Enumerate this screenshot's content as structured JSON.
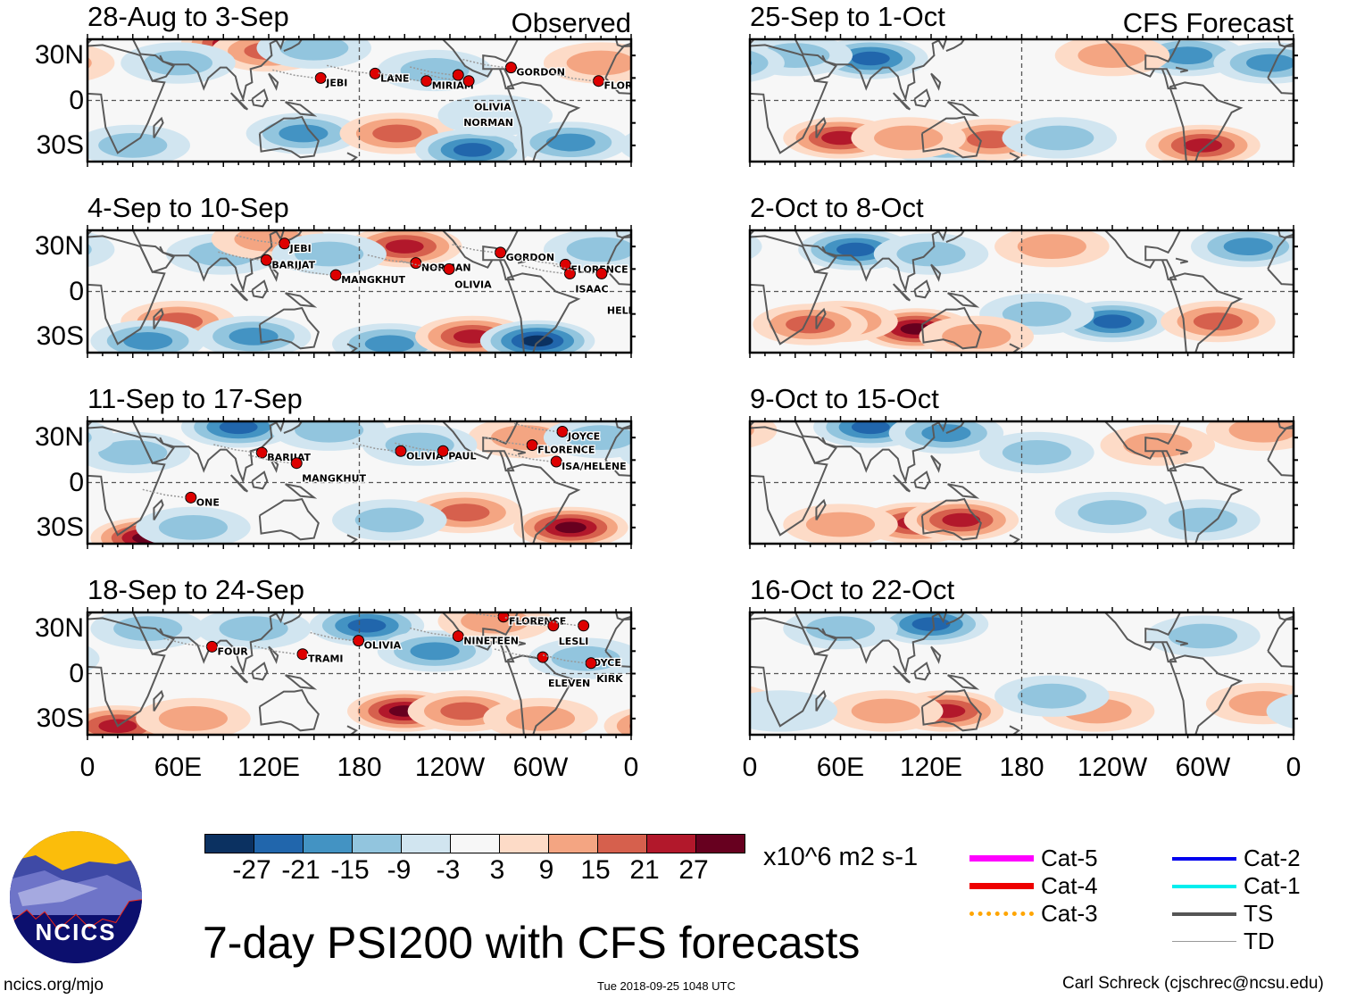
{
  "figure": {
    "title": "7-day PSI200 with CFS forecasts",
    "units": "x10^6 m2 s-1",
    "website": "ncics.org/mjo",
    "timestamp": "Tue 2018-09-25 1048 UTC",
    "author": "Carl Schreck (cjschrec@ncsu.edu)",
    "logo_text": "NCICS",
    "observed_label": "Observed",
    "forecast_label": "CFS Forecast"
  },
  "axes": {
    "lat_labels": [
      "30N",
      "0",
      "30S"
    ],
    "lon_labels": [
      "0",
      "60E",
      "120E",
      "180",
      "120W",
      "60W",
      "0"
    ],
    "lon_range": [
      0,
      360
    ],
    "lat_range": [
      -40,
      40
    ]
  },
  "colorbar": {
    "levels": [
      -27,
      -21,
      -15,
      -9,
      -3,
      3,
      9,
      15,
      21,
      27
    ],
    "labels": [
      "-27",
      "-21",
      "-15",
      "-9",
      "-3",
      "3",
      "9",
      "15",
      "21",
      "27"
    ],
    "colors": [
      "#0b3161",
      "#2166ac",
      "#4393c3",
      "#92c5de",
      "#d1e5f0",
      "#f7f7f7",
      "#fddbc7",
      "#f4a582",
      "#d6604d",
      "#b2182b",
      "#67001f"
    ]
  },
  "legend": [
    {
      "label": "Cat-5",
      "color": "#ff00ff",
      "style": "thick"
    },
    {
      "label": "Cat-4",
      "color": "#ee0000",
      "style": "thick"
    },
    {
      "label": "Cat-3",
      "color": "#ffa500",
      "style": "dotted"
    },
    {
      "label": "Cat-2",
      "color": "#0000ee",
      "style": "medium"
    },
    {
      "label": "Cat-1",
      "color": "#00eeee",
      "style": "medium"
    },
    {
      "label": "TS",
      "color": "#555555",
      "style": "medium"
    },
    {
      "label": "TD",
      "color": "#999999",
      "style": "thin"
    }
  ],
  "panels": [
    {
      "title": "28-Aug to 3-Sep",
      "type": "observed",
      "anomalies": [
        [
          100,
          38,
          28
        ],
        [
          120,
          33,
          12
        ],
        [
          60,
          25,
          -6
        ],
        [
          143,
          -22,
          -16
        ],
        [
          205,
          -22,
          14
        ],
        [
          255,
          -33,
          -20
        ],
        [
          320,
          -28,
          -14
        ],
        [
          230,
          20,
          -6
        ],
        [
          150,
          35,
          -6
        ],
        [
          30,
          -30,
          -8
        ],
        [
          340,
          25,
          8
        ],
        [
          270,
          -10,
          -5
        ]
      ],
      "storms": [
        {
          "name": "JEBI",
          "lon": 158,
          "lat": 12
        },
        {
          "name": "LANE",
          "lon": 194,
          "lat": 15
        },
        {
          "name": "MIRIAM",
          "lon": 228,
          "lat": 10
        },
        {
          "name": "OLIVIA",
          "lon": 256,
          "lat": 10
        },
        {
          "name": "NORMAN",
          "lon": 249,
          "lat": 14
        },
        {
          "name": "GORDON",
          "lon": 284,
          "lat": 19
        },
        {
          "name": "FLORENCE",
          "lon": 342,
          "lat": 10
        }
      ]
    },
    {
      "title": "25-Sep to 1-Oct",
      "type": "forecast",
      "anomalies": [
        [
          80,
          28,
          -20
        ],
        [
          30,
          30,
          -10
        ],
        [
          60,
          -25,
          22
        ],
        [
          130,
          -30,
          -8
        ],
        [
          160,
          -26,
          12
        ],
        [
          205,
          -25,
          -8
        ],
        [
          300,
          -30,
          22
        ],
        [
          290,
          30,
          -15
        ],
        [
          345,
          25,
          -12
        ],
        [
          240,
          30,
          8
        ],
        [
          105,
          -25,
          10
        ]
      ],
      "storms": []
    },
    {
      "title": "4-Sep to 10-Sep",
      "type": "observed",
      "anomalies": [
        [
          210,
          30,
          20
        ],
        [
          60,
          -20,
          14
        ],
        [
          40,
          -33,
          -16
        ],
        [
          110,
          -30,
          -12
        ],
        [
          200,
          -35,
          -14
        ],
        [
          255,
          -30,
          18
        ],
        [
          298,
          -33,
          -28
        ],
        [
          90,
          25,
          -8
        ],
        [
          120,
          35,
          10
        ],
        [
          340,
          28,
          -10
        ],
        [
          160,
          25,
          -6
        ]
      ],
      "storms": [
        {
          "name": "JEBI",
          "lon": 134,
          "lat": 29
        },
        {
          "name": "BARIJAT",
          "lon": 122,
          "lat": 18
        },
        {
          "name": "MANGKHUT",
          "lon": 168,
          "lat": 8
        },
        {
          "name": "NORMAN",
          "lon": 221,
          "lat": 16
        },
        {
          "name": "OLIVIA",
          "lon": 243,
          "lat": 12
        },
        {
          "name": "GORDON",
          "lon": 277,
          "lat": 23
        },
        {
          "name": "FLORENCE",
          "lon": 320,
          "lat": 15
        },
        {
          "name": "ISAAC",
          "lon": 323,
          "lat": 9
        },
        {
          "name": "HELENE",
          "lon": 344,
          "lat": 9
        }
      ]
    },
    {
      "title": "2-Oct to 8-Oct",
      "type": "forecast",
      "anomalies": [
        [
          70,
          28,
          -20
        ],
        [
          120,
          25,
          -10
        ],
        [
          110,
          -25,
          24
        ],
        [
          60,
          -20,
          12
        ],
        [
          40,
          -22,
          12
        ],
        [
          240,
          -20,
          -18
        ],
        [
          190,
          -15,
          -8
        ],
        [
          330,
          30,
          -14
        ],
        [
          200,
          30,
          10
        ],
        [
          310,
          -20,
          12
        ],
        [
          150,
          -30,
          8
        ]
      ],
      "storms": []
    },
    {
      "title": "11-Sep to 17-Sep",
      "type": "observed",
      "anomalies": [
        [
          100,
          37,
          -18
        ],
        [
          160,
          35,
          -10
        ],
        [
          40,
          -37,
          24
        ],
        [
          320,
          -30,
          26
        ],
        [
          250,
          -20,
          14
        ],
        [
          200,
          -25,
          -10
        ],
        [
          70,
          -30,
          -8
        ],
        [
          290,
          30,
          10
        ],
        [
          220,
          25,
          -8
        ],
        [
          30,
          20,
          -6
        ],
        [
          340,
          30,
          -10
        ]
      ],
      "storms": [
        {
          "name": "BARIJAT",
          "lon": 119,
          "lat": 17
        },
        {
          "name": "MANGKHUT",
          "lon": 142,
          "lat": 10
        },
        {
          "name": "OLIVIA",
          "lon": 211,
          "lat": 18
        },
        {
          "name": "PAUL",
          "lon": 239,
          "lat": 18
        },
        {
          "name": "JOYCE",
          "lon": 318,
          "lat": 31
        },
        {
          "name": "FLORENCE",
          "lon": 298,
          "lat": 22
        },
        {
          "name": "ISA/HELENE",
          "lon": 314,
          "lat": 11
        },
        {
          "name": "ONE",
          "lon": 72,
          "lat": -13
        }
      ]
    },
    {
      "title": "9-Oct to 15-Oct",
      "type": "forecast",
      "anomalies": [
        [
          80,
          37,
          -22
        ],
        [
          130,
          33,
          -14
        ],
        [
          110,
          -27,
          22
        ],
        [
          140,
          -25,
          18
        ],
        [
          60,
          -28,
          8
        ],
        [
          240,
          -20,
          -10
        ],
        [
          190,
          20,
          -6
        ],
        [
          270,
          25,
          8
        ],
        [
          340,
          35,
          8
        ],
        [
          300,
          -25,
          -6
        ]
      ],
      "storms": []
    },
    {
      "title": "18-Sep to 24-Sep",
      "type": "observed",
      "anomalies": [
        [
          210,
          -25,
          24
        ],
        [
          250,
          -25,
          12
        ],
        [
          20,
          -35,
          20
        ],
        [
          70,
          -30,
          10
        ],
        [
          185,
          32,
          -22
        ],
        [
          230,
          15,
          -12
        ],
        [
          110,
          30,
          -10
        ],
        [
          40,
          30,
          -8
        ],
        [
          300,
          -30,
          8
        ],
        [
          330,
          10,
          -8
        ],
        [
          270,
          35,
          8
        ]
      ],
      "storms": [
        {
          "name": "FOUR",
          "lon": 86,
          "lat": 15
        },
        {
          "name": "TRAMI",
          "lon": 146,
          "lat": 10
        },
        {
          "name": "OLIVIA",
          "lon": 183,
          "lat": 19
        },
        {
          "name": "NINETEEN",
          "lon": 249,
          "lat": 22
        },
        {
          "name": "FLORENCE",
          "lon": 279,
          "lat": 35
        },
        {
          "name": "LESLI",
          "lon": 312,
          "lat": 29
        },
        {
          "name": "JOYCE",
          "lon": 332,
          "lat": 29
        },
        {
          "name": "ELEVEN",
          "lon": 305,
          "lat": 8
        },
        {
          "name": "KIRK",
          "lon": 337,
          "lat": 4
        }
      ]
    },
    {
      "title": "16-Oct to 22-Oct",
      "type": "forecast",
      "anomalies": [
        [
          120,
          33,
          -22
        ],
        [
          60,
          30,
          -10
        ],
        [
          130,
          -25,
          20
        ],
        [
          90,
          -25,
          8
        ],
        [
          230,
          -25,
          8
        ],
        [
          200,
          -15,
          -6
        ],
        [
          300,
          25,
          -6
        ],
        [
          340,
          -20,
          6
        ],
        [
          20,
          -25,
          -5
        ]
      ],
      "storms": []
    }
  ]
}
